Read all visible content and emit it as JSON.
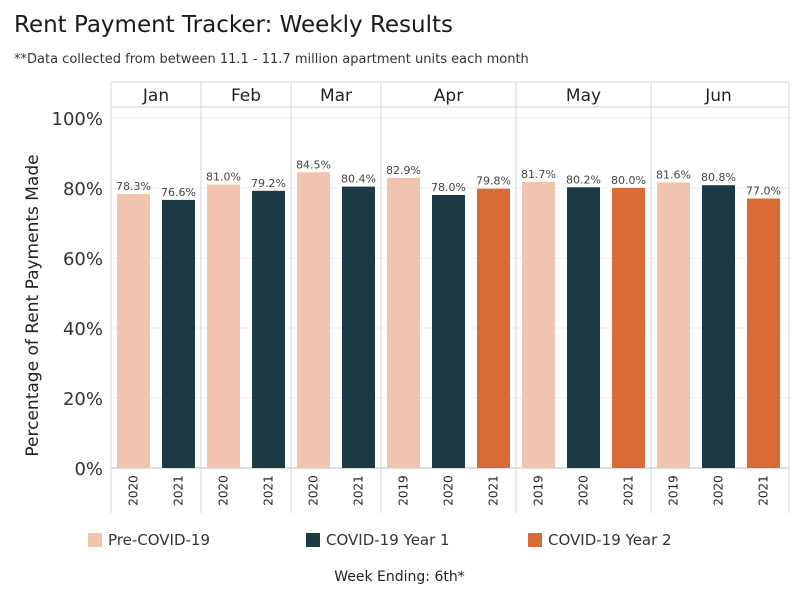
{
  "title": "Rent Payment Tracker: Weekly Results",
  "subtitle": "**Data collected from between 11.1 - 11.7 million apartment units each month",
  "footer": "Week Ending: 6th*",
  "colors": {
    "Pre-COVID-19": "#f0c4ae",
    "COVID-19 Year 1": "#1b3a43",
    "COVID-19 Year 2": "#d96c34"
  },
  "chart_data": {
    "type": "bar",
    "ylabel": "Percentage of Rent Payments Made",
    "yticks": [
      "0%",
      "20%",
      "40%",
      "60%",
      "80%",
      "100%"
    ],
    "ylim": [
      0,
      100
    ],
    "grid": true,
    "legend_position": "bottom",
    "groups": [
      {
        "month": "Jan",
        "bars": [
          {
            "year": "2020",
            "value": 78.3,
            "label": "78.3%",
            "category": "Pre-COVID-19"
          },
          {
            "year": "2021",
            "value": 76.6,
            "label": "76.6%",
            "category": "COVID-19 Year 1"
          }
        ]
      },
      {
        "month": "Feb",
        "bars": [
          {
            "year": "2020",
            "value": 81.0,
            "label": "81.0%",
            "category": "Pre-COVID-19"
          },
          {
            "year": "2021",
            "value": 79.2,
            "label": "79.2%",
            "category": "COVID-19 Year 1"
          }
        ]
      },
      {
        "month": "Mar",
        "bars": [
          {
            "year": "2020",
            "value": 84.5,
            "label": "84.5%",
            "category": "Pre-COVID-19"
          },
          {
            "year": "2021",
            "value": 80.4,
            "label": "80.4%",
            "category": "COVID-19 Year 1"
          }
        ]
      },
      {
        "month": "Apr",
        "bars": [
          {
            "year": "2019",
            "value": 82.9,
            "label": "82.9%",
            "category": "Pre-COVID-19"
          },
          {
            "year": "2020",
            "value": 78.0,
            "label": "78.0%",
            "category": "COVID-19 Year 1"
          },
          {
            "year": "2021",
            "value": 79.8,
            "label": "79.8%",
            "category": "COVID-19 Year 2"
          }
        ]
      },
      {
        "month": "May",
        "bars": [
          {
            "year": "2019",
            "value": 81.7,
            "label": "81.7%",
            "category": "Pre-COVID-19"
          },
          {
            "year": "2020",
            "value": 80.2,
            "label": "80.2%",
            "category": "COVID-19 Year 1"
          },
          {
            "year": "2021",
            "value": 80.0,
            "label": "80.0%",
            "category": "COVID-19 Year 2"
          }
        ]
      },
      {
        "month": "Jun",
        "bars": [
          {
            "year": "2019",
            "value": 81.6,
            "label": "81.6%",
            "category": "Pre-COVID-19"
          },
          {
            "year": "2020",
            "value": 80.8,
            "label": "80.8%",
            "category": "COVID-19 Year 1"
          },
          {
            "year": "2021",
            "value": 77.0,
            "label": "77.0%",
            "category": "COVID-19 Year 2"
          }
        ]
      }
    ],
    "legend": [
      "Pre-COVID-19",
      "COVID-19 Year 1",
      "COVID-19 Year 2"
    ]
  }
}
